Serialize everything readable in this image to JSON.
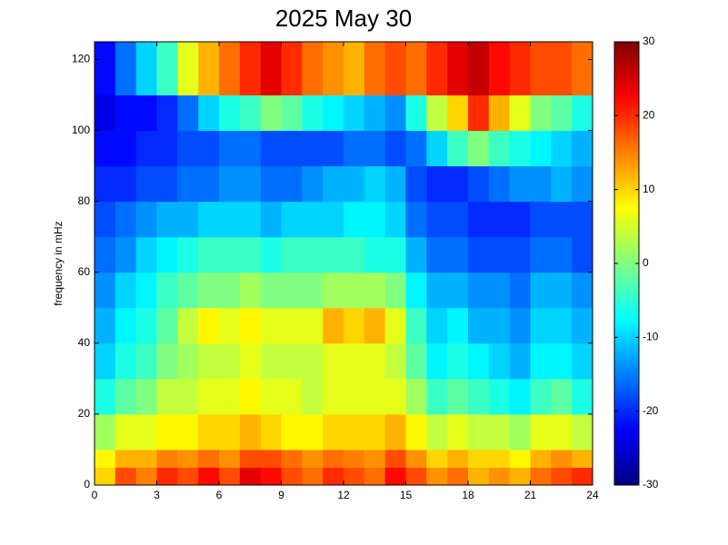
{
  "chart_data": {
    "type": "heatmap",
    "title": "2025 May 30",
    "y_label": "frequency in mHz",
    "x_edges": [
      0,
      1,
      2,
      3,
      4,
      5,
      6,
      7,
      8,
      9,
      10,
      11,
      12,
      13,
      14,
      15,
      16,
      17,
      18,
      19,
      20,
      21,
      22,
      23,
      24
    ],
    "y_edges": [
      0,
      5,
      10,
      20,
      30,
      40,
      50,
      60,
      70,
      80,
      90,
      100,
      110,
      125
    ],
    "values": [
      [
        10,
        18,
        15,
        20,
        18,
        22,
        18,
        24,
        22,
        18,
        16,
        20,
        18,
        16,
        22,
        18,
        14,
        16,
        12,
        14,
        12,
        16,
        18,
        20
      ],
      [
        8,
        12,
        12,
        15,
        14,
        16,
        14,
        18,
        18,
        16,
        14,
        16,
        15,
        14,
        18,
        14,
        10,
        12,
        10,
        10,
        8,
        12,
        14,
        12
      ],
      [
        2,
        6,
        6,
        8,
        8,
        10,
        10,
        12,
        10,
        8,
        8,
        10,
        10,
        10,
        12,
        8,
        4,
        6,
        4,
        4,
        2,
        6,
        6,
        4
      ],
      [
        -6,
        -2,
        0,
        4,
        4,
        6,
        6,
        8,
        6,
        6,
        4,
        6,
        6,
        6,
        6,
        2,
        -4,
        -2,
        -4,
        -6,
        -8,
        -4,
        -2,
        -6
      ],
      [
        -10,
        -6,
        -4,
        0,
        2,
        4,
        4,
        6,
        4,
        4,
        4,
        6,
        6,
        6,
        4,
        -2,
        -8,
        -6,
        -8,
        -10,
        -12,
        -8,
        -8,
        -10
      ],
      [
        -12,
        -8,
        -6,
        -2,
        4,
        8,
        6,
        8,
        6,
        6,
        6,
        12,
        10,
        12,
        6,
        -4,
        -10,
        -8,
        -12,
        -12,
        -14,
        -10,
        -10,
        -12
      ],
      [
        -14,
        -10,
        -8,
        -4,
        -2,
        0,
        0,
        2,
        0,
        0,
        0,
        2,
        2,
        2,
        0,
        -8,
        -12,
        -12,
        -14,
        -14,
        -16,
        -12,
        -12,
        -14
      ],
      [
        -16,
        -14,
        -10,
        -8,
        -6,
        -4,
        -4,
        -4,
        -6,
        -4,
        -4,
        -4,
        -4,
        -6,
        -6,
        -12,
        -16,
        -16,
        -18,
        -18,
        -18,
        -16,
        -16,
        -18
      ],
      [
        -18,
        -16,
        -14,
        -12,
        -12,
        -10,
        -10,
        -10,
        -12,
        -10,
        -10,
        -10,
        -8,
        -8,
        -10,
        -16,
        -18,
        -18,
        -20,
        -20,
        -20,
        -18,
        -18,
        -18
      ],
      [
        -20,
        -20,
        -18,
        -18,
        -16,
        -16,
        -14,
        -14,
        -16,
        -16,
        -14,
        -12,
        -12,
        -10,
        -12,
        -18,
        -20,
        -20,
        -18,
        -16,
        -14,
        -14,
        -12,
        -14
      ],
      [
        -22,
        -22,
        -20,
        -20,
        -18,
        -18,
        -16,
        -16,
        -18,
        -18,
        -18,
        -18,
        -16,
        -16,
        -18,
        -16,
        -10,
        -4,
        0,
        -4,
        -6,
        -8,
        -10,
        -12
      ],
      [
        -24,
        -22,
        -22,
        -20,
        -16,
        -10,
        -6,
        -4,
        0,
        -2,
        -6,
        -8,
        -10,
        -12,
        -14,
        -6,
        4,
        10,
        20,
        12,
        6,
        0,
        -2,
        -6
      ],
      [
        -22,
        -16,
        -10,
        -4,
        6,
        12,
        16,
        20,
        24,
        20,
        16,
        14,
        12,
        16,
        18,
        16,
        20,
        24,
        26,
        22,
        20,
        18,
        18,
        16
      ]
    ],
    "colormap": "jet",
    "clim": [
      -30,
      30
    ],
    "colorbar_ticks": [
      -30,
      -20,
      -10,
      0,
      10,
      20,
      30
    ],
    "xlim": [
      0,
      24
    ],
    "xticks": [
      0,
      3,
      6,
      9,
      12,
      15,
      18,
      21,
      24
    ],
    "ylim": [
      0,
      125
    ],
    "yticks": [
      0,
      20,
      40,
      60,
      80,
      100,
      120
    ]
  }
}
